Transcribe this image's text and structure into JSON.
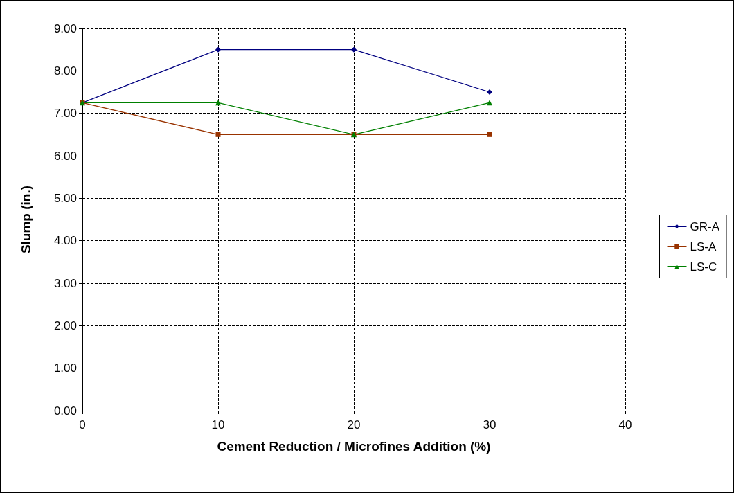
{
  "chart_data": {
    "type": "line",
    "xlabel": "Cement Reduction / Microfines Addition (%)",
    "ylabel": "Slump (in.)",
    "x": [
      0,
      10,
      20,
      30
    ],
    "series": [
      {
        "name": "GR-A",
        "color": "#000080",
        "marker": "diamond",
        "values": [
          7.25,
          8.5,
          8.5,
          7.5
        ]
      },
      {
        "name": "LS-A",
        "color": "#993300",
        "marker": "square",
        "values": [
          7.25,
          6.5,
          6.5,
          6.5
        ]
      },
      {
        "name": "LS-C",
        "color": "#008000",
        "marker": "triangle",
        "values": [
          7.25,
          7.25,
          6.5,
          7.25
        ]
      }
    ],
    "xlim": [
      0,
      40
    ],
    "xticks": [
      0,
      10,
      20,
      30,
      40
    ],
    "ylim": [
      0,
      9
    ],
    "yticks": [
      {
        "value": 0,
        "label": "0.00"
      },
      {
        "value": 1,
        "label": "1.00"
      },
      {
        "value": 2,
        "label": "2.00"
      },
      {
        "value": 3,
        "label": "3.00"
      },
      {
        "value": 4,
        "label": "4.00"
      },
      {
        "value": 5,
        "label": "5.00"
      },
      {
        "value": 6,
        "label": "6.00"
      },
      {
        "value": 7,
        "label": "7.00"
      },
      {
        "value": 8,
        "label": "8.00"
      },
      {
        "value": 9,
        "label": "9.00"
      }
    ],
    "grid": true,
    "legend": "right",
    "line_style": "solid"
  }
}
